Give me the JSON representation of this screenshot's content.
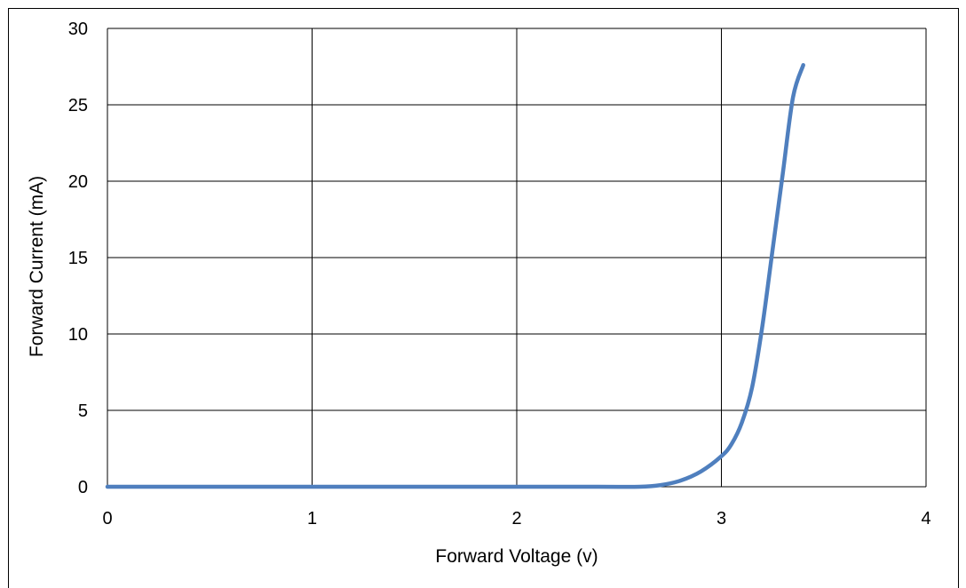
{
  "chart_data": {
    "type": "line",
    "title": "",
    "xlabel": "Forward Voltage (v)",
    "ylabel": "Forward Current (mA)",
    "xlim": [
      0,
      4
    ],
    "ylim": [
      0,
      30
    ],
    "xticks": [
      0,
      1,
      2,
      3,
      4
    ],
    "yticks": [
      0,
      5,
      10,
      15,
      20,
      25,
      30
    ],
    "grid": true,
    "legend": "none",
    "series": [
      {
        "color": "#4f7fbe",
        "x": [
          0,
          0.5,
          1.0,
          1.5,
          2.0,
          2.4,
          2.6,
          2.7,
          2.8,
          2.9,
          3.0,
          3.05,
          3.1,
          3.15,
          3.2,
          3.25,
          3.3,
          3.35,
          3.4
        ],
        "y": [
          0,
          0,
          0,
          0,
          0,
          0,
          0,
          0.1,
          0.4,
          1.0,
          2.0,
          2.8,
          4.2,
          6.5,
          10.5,
          15.5,
          20.5,
          25.5,
          27.6
        ]
      }
    ]
  }
}
